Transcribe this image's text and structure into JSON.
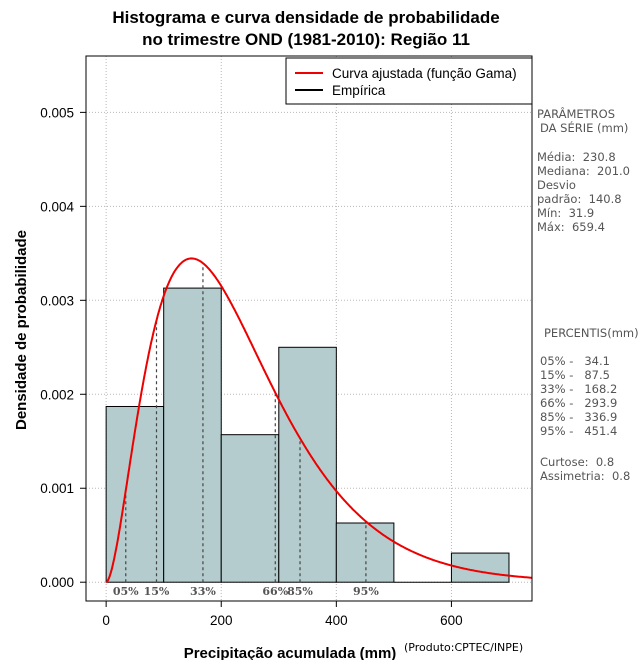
{
  "header": {
    "title_line1": "Histograma e curva densidade de probabilidade",
    "title_line2": "no trimestre OND (1981-2010): Região 11"
  },
  "chart_data": {
    "type": "bar",
    "title": "Histograma e curva densidade de probabilidade no trimestre OND (1981-2010): Região 11",
    "xlabel": "Precipitação acumulada (mm)",
    "ylabel": "Densidade de probabilidade",
    "credit": "(Produto:CPTEC/INPE)",
    "xlim": [
      -35,
      740
    ],
    "ylim": [
      -0.0002,
      0.0056
    ],
    "x_ticks": [
      0,
      200,
      400,
      600
    ],
    "x_tick_labels": [
      "0",
      "200",
      "400",
      "600"
    ],
    "y_ticks": [
      0,
      0.001,
      0.002,
      0.003,
      0.004,
      0.005
    ],
    "y_tick_labels": [
      "0.000",
      "0.001",
      "0.002",
      "0.003",
      "0.004",
      "0.005"
    ],
    "grid": true,
    "histogram": {
      "name": "Empírica",
      "bins": [
        {
          "from": 0,
          "to": 100,
          "density": 0.00187
        },
        {
          "from": 100,
          "to": 200,
          "density": 0.00313
        },
        {
          "from": 200,
          "to": 300,
          "density": 0.00157
        },
        {
          "from": 300,
          "to": 400,
          "density": 0.0025
        },
        {
          "from": 400,
          "to": 500,
          "density": 0.00063
        },
        {
          "from": 500,
          "to": 600,
          "density": 0
        },
        {
          "from": 600,
          "to": 700,
          "density": 0.00031
        }
      ],
      "color": "#b4cccd"
    },
    "fitted_curve": {
      "name": "Curva ajustada (função Gama)",
      "distribution": "gamma",
      "mean": 230.8,
      "shape": 2.8,
      "color": "#ee0000"
    },
    "percentile_markers": [
      {
        "label": "05%",
        "x": 34.1
      },
      {
        "label": "15%",
        "x": 87.5
      },
      {
        "label": "33%",
        "x": 168.2
      },
      {
        "label": "66%",
        "x": 293.9
      },
      {
        "label": "85%",
        "x": 336.9
      },
      {
        "label": "95%",
        "x": 451.4
      }
    ],
    "legend": {
      "position": "top-right",
      "entries": [
        {
          "label": "Curva ajustada (função Gama)",
          "color": "#ee0000"
        },
        {
          "label": "Empírica",
          "color": "#000000"
        }
      ]
    }
  },
  "stats_panel": {
    "parametros_title_1": "PARÂMETROS",
    "parametros_title_2": "DA SÉRIE (mm)",
    "media": "Média:  230.8",
    "mediana": "Mediana:  201.0",
    "desvio_1": "Desvio",
    "desvio_2": "padrão:  140.8",
    "min": "Mín:  31.9",
    "max": "Máx:  659.4",
    "percentis_title": "PERCENTIS(mm)",
    "p05": "05% -   34.1",
    "p15": "15% -   87.5",
    "p33": "33% -   168.2",
    "p66": "66% -   293.9",
    "p85": "85% -   336.9",
    "p95": "95% -   451.4",
    "curtose": "Curtose:  0.8",
    "assimetria": "Assimetria:  0.8"
  }
}
